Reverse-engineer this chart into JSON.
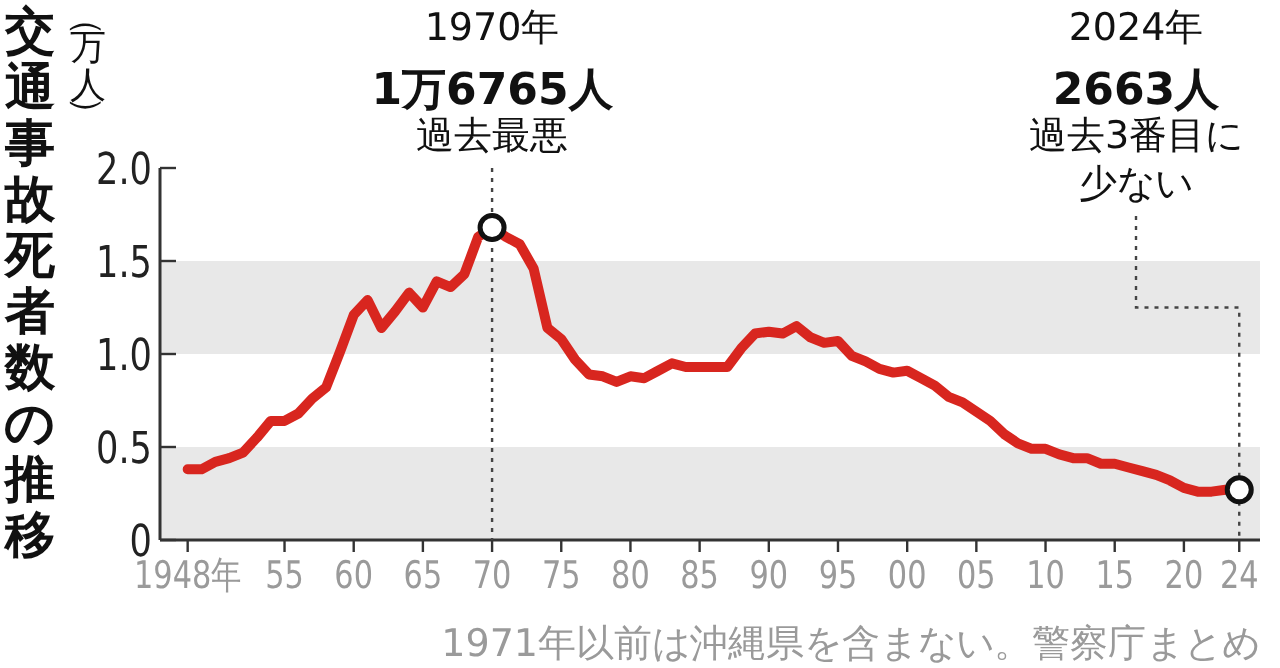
{
  "chart_data": {
    "type": "line",
    "title": "交通事故死者数の推移",
    "ylabel": "（万人）",
    "x": [
      1948,
      1949,
      1950,
      1951,
      1952,
      1953,
      1954,
      1955,
      1956,
      1957,
      1958,
      1959,
      1960,
      1961,
      1962,
      1963,
      1964,
      1965,
      1966,
      1967,
      1968,
      1969,
      1970,
      1971,
      1972,
      1973,
      1974,
      1975,
      1976,
      1977,
      1978,
      1979,
      1980,
      1981,
      1982,
      1983,
      1984,
      1985,
      1986,
      1987,
      1988,
      1989,
      1990,
      1991,
      1992,
      1993,
      1994,
      1995,
      1996,
      1997,
      1998,
      1999,
      2000,
      2001,
      2002,
      2003,
      2004,
      2005,
      2006,
      2007,
      2008,
      2009,
      2010,
      2011,
      2012,
      2013,
      2014,
      2015,
      2016,
      2017,
      2018,
      2019,
      2020,
      2021,
      2022,
      2023,
      2024
    ],
    "series": [
      {
        "color": "#d8261f",
        "values": [
          0.38,
          0.38,
          0.42,
          0.44,
          0.47,
          0.55,
          0.64,
          0.64,
          0.68,
          0.76,
          0.82,
          1.01,
          1.21,
          1.29,
          1.14,
          1.23,
          1.33,
          1.25,
          1.39,
          1.36,
          1.43,
          1.63,
          1.68,
          1.63,
          1.59,
          1.46,
          1.14,
          1.08,
          0.97,
          0.89,
          0.88,
          0.85,
          0.88,
          0.87,
          0.91,
          0.95,
          0.93,
          0.93,
          0.93,
          0.93,
          1.03,
          1.11,
          1.12,
          1.11,
          1.15,
          1.09,
          1.06,
          1.07,
          0.99,
          0.96,
          0.92,
          0.9,
          0.91,
          0.87,
          0.83,
          0.77,
          0.74,
          0.69,
          0.64,
          0.57,
          0.52,
          0.49,
          0.49,
          0.46,
          0.44,
          0.44,
          0.41,
          0.41,
          0.39,
          0.37,
          0.35,
          0.32,
          0.28,
          0.26,
          0.26,
          0.27,
          0.27
        ]
      }
    ],
    "xlim": [
      1946,
      2025.5
    ],
    "xticks": [
      {
        "value": 1948,
        "label": "1948年"
      },
      {
        "value": 1955,
        "label": "55"
      },
      {
        "value": 1960,
        "label": "60"
      },
      {
        "value": 1965,
        "label": "65"
      },
      {
        "value": 1970,
        "label": "70"
      },
      {
        "value": 1975,
        "label": "75"
      },
      {
        "value": 1980,
        "label": "80"
      },
      {
        "value": 1985,
        "label": "85"
      },
      {
        "value": 1990,
        "label": "90"
      },
      {
        "value": 1995,
        "label": "95"
      },
      {
        "value": 2000,
        "label": "00"
      },
      {
        "value": 2005,
        "label": "05"
      },
      {
        "value": 2010,
        "label": "10"
      },
      {
        "value": 2015,
        "label": "15"
      },
      {
        "value": 2020,
        "label": "20"
      },
      {
        "value": 2024,
        "label": "24"
      }
    ],
    "ylim": [
      0,
      2
    ],
    "yticks": [
      0,
      {
        "value": 0.5,
        "label": "0.5"
      },
      {
        "value": 1,
        "label": "1.0"
      },
      {
        "value": 1.5,
        "label": "1.5"
      },
      {
        "value": 2,
        "label": "2.0"
      }
    ],
    "bands": [
      {
        "axis": "y",
        "from": 0,
        "to": 0.5,
        "color": "#e8e8e8"
      },
      {
        "axis": "y",
        "from": 1,
        "to": 1.5,
        "color": "#e8e8e8"
      }
    ],
    "annotations": [
      "1970年",
      "1万6765人",
      {
        "text": "過去最悪",
        "x": 1970,
        "y": 1.68
      },
      "2024年",
      "2663人",
      "過去3番目に",
      {
        "text": "少ない",
        "x": 2024,
        "y": 0.27
      },
      "1971年以前は沖縄県を含まない。警察庁まとめ"
    ]
  }
}
